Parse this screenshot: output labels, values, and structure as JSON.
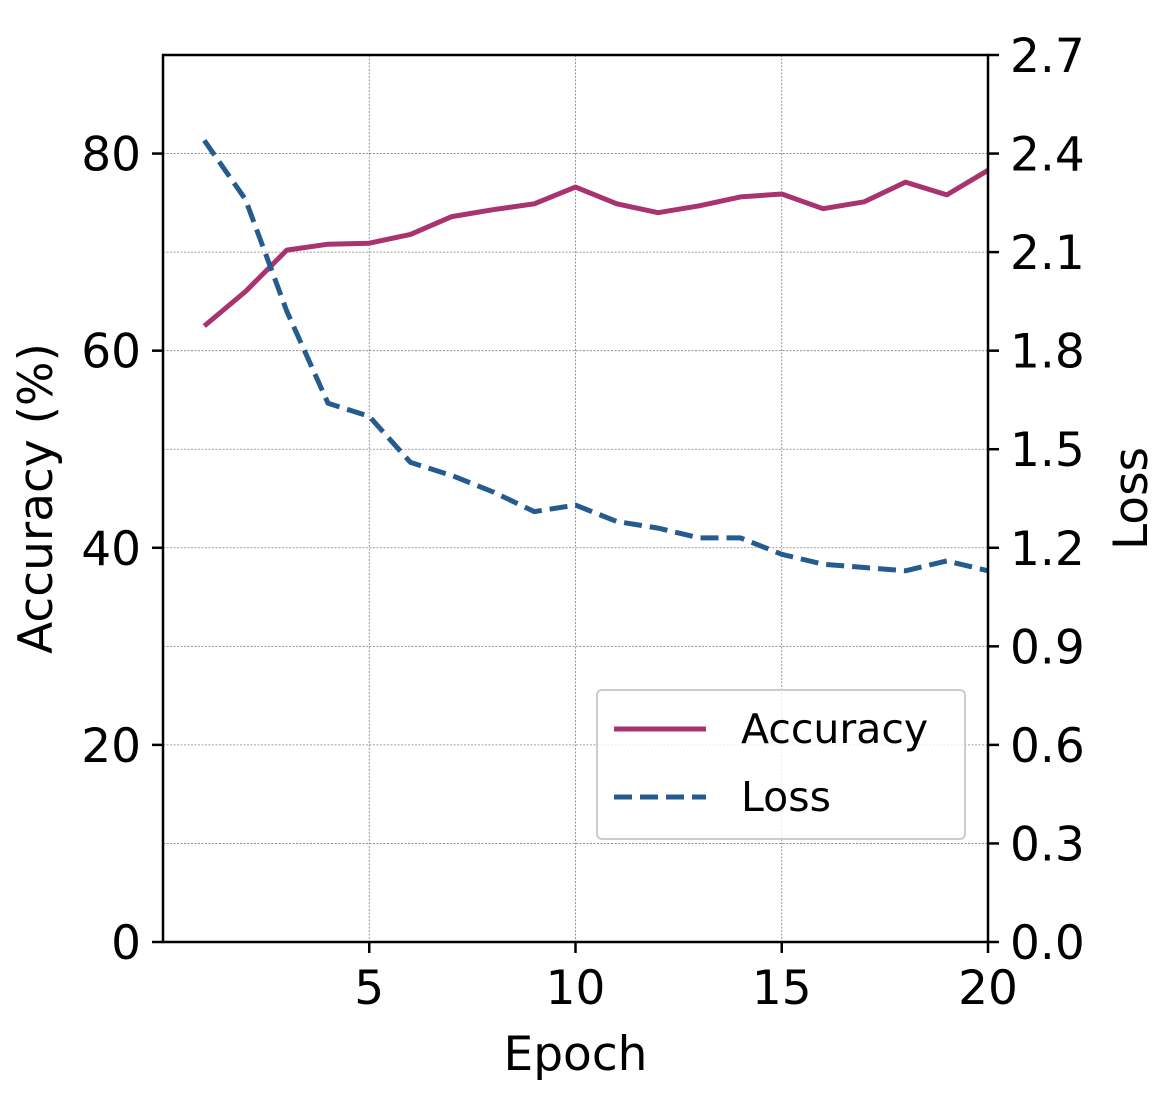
{
  "chart_data": {
    "type": "line",
    "x": [
      1,
      2,
      3,
      4,
      5,
      6,
      7,
      8,
      9,
      10,
      11,
      12,
      13,
      14,
      15,
      16,
      17,
      18,
      19,
      20
    ],
    "series": [
      {
        "name": "Accuracy",
        "axis": "left",
        "style": "solid",
        "color": "#a8336f",
        "values": [
          62.5,
          66.0,
          70.2,
          70.8,
          70.9,
          71.8,
          73.6,
          74.3,
          74.9,
          76.6,
          74.9,
          74.0,
          74.7,
          75.6,
          75.9,
          74.4,
          75.1,
          77.1,
          75.8,
          78.3
        ]
      },
      {
        "name": "Loss",
        "axis": "right",
        "style": "dashed",
        "color": "#255b8e",
        "values": [
          2.44,
          2.26,
          1.92,
          1.64,
          1.6,
          1.46,
          1.42,
          1.37,
          1.31,
          1.33,
          1.28,
          1.26,
          1.23,
          1.23,
          1.18,
          1.15,
          1.14,
          1.13,
          1.16,
          1.13
        ]
      }
    ],
    "xlabel": "Epoch",
    "ylabel": "Accuracy (%)",
    "ylabel_right": "Loss",
    "xlim": [
      0,
      20
    ],
    "ylim": [
      0,
      90
    ],
    "ylim_right": [
      0,
      2.7
    ],
    "x_ticks": [
      5,
      10,
      15,
      20
    ],
    "x_tick_labels": [
      "5",
      "10",
      "15",
      "20"
    ],
    "y_ticks": [
      0,
      20,
      40,
      60,
      80
    ],
    "y_tick_labels": [
      "0",
      "20",
      "40",
      "60",
      "80"
    ],
    "y_minor_gridlines": [
      10,
      30,
      50,
      70
    ],
    "y_right_ticks": [
      0,
      0.3,
      0.6,
      0.9,
      1.2,
      1.5,
      1.8,
      2.1,
      2.4,
      2.7
    ],
    "y_right_tick_labels": [
      "0.0",
      "0.3",
      "0.6",
      "0.9",
      "1.2",
      "1.5",
      "1.8",
      "2.1",
      "2.4",
      "2.7"
    ],
    "grid": true,
    "legend": {
      "placement": "lower-right",
      "entries": [
        "Accuracy",
        "Loss"
      ]
    }
  }
}
